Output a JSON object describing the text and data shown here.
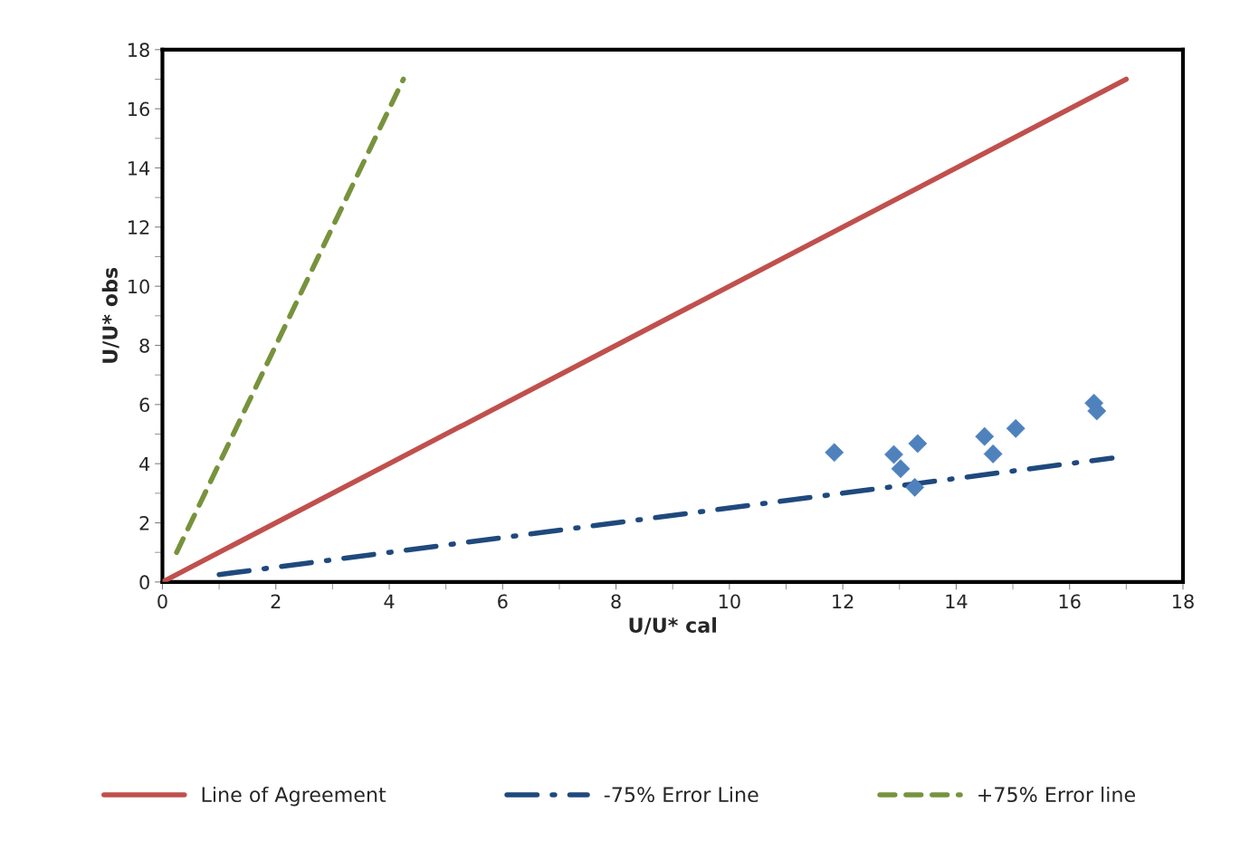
{
  "chart_data": {
    "type": "scatter",
    "xlabel": "U/U* cal",
    "ylabel": "U/U* obs",
    "xlim": [
      0,
      18
    ],
    "ylim": [
      0,
      18
    ],
    "xticks": [
      0,
      2,
      4,
      6,
      8,
      10,
      12,
      14,
      16,
      18
    ],
    "yticks": [
      0,
      2,
      4,
      6,
      8,
      10,
      12,
      14,
      16,
      18
    ],
    "grid": false,
    "legend": "bottom",
    "series": [
      {
        "type": "scatter",
        "color": "#4f81bd",
        "marker": "diamond",
        "x": [
          11.85,
          12.9,
          13.02,
          13.32,
          13.27,
          14.5,
          14.65,
          15.05,
          16.43,
          16.48
        ],
        "values": [
          4.38,
          4.31,
          3.83,
          4.68,
          3.2,
          4.92,
          4.33,
          5.19,
          6.05,
          5.78
        ]
      },
      {
        "type": "line",
        "name": "Line of Agreement",
        "color": "#c0504d",
        "line_style": "solid",
        "x": [
          0,
          17
        ],
        "values": [
          0,
          17
        ]
      },
      {
        "type": "line",
        "name": "-75% Error Line",
        "color": "#1f497d",
        "line_style": "dashdot",
        "x": [
          1,
          16.75
        ],
        "values": [
          0.25,
          4.19
        ]
      },
      {
        "type": "line",
        "name": "+75% Error line",
        "color": "#77933c",
        "line_style": "dashed",
        "x": [
          0.25,
          4.25
        ],
        "values": [
          1,
          17
        ]
      }
    ]
  }
}
